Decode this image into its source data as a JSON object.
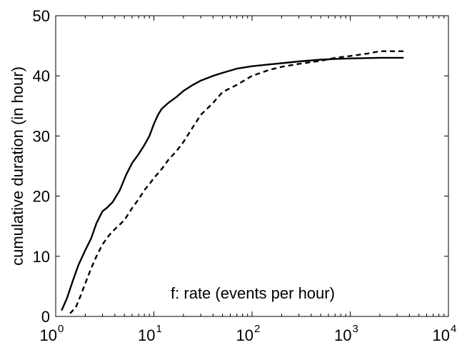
{
  "chart_data": {
    "type": "line",
    "title": "",
    "xlabel": "f: rate (events per hour)",
    "ylabel": "cumulative duration (in hour)",
    "xscale": "log",
    "xlim": [
      1,
      10000
    ],
    "ylim": [
      0,
      50
    ],
    "grid": false,
    "legend": "none",
    "xticks": [
      {
        "base": "10",
        "exp": "0"
      },
      {
        "base": "10",
        "exp": "1"
      },
      {
        "base": "10",
        "exp": "2"
      },
      {
        "base": "10",
        "exp": "3"
      },
      {
        "base": "10",
        "exp": "4"
      }
    ],
    "yticks": [
      "0",
      "10",
      "20",
      "30",
      "40",
      "50"
    ],
    "series": [
      {
        "style": "solid",
        "color": "#000000",
        "x": [
          1.15,
          1.3,
          1.5,
          1.7,
          2.0,
          2.3,
          2.6,
          3.0,
          3.3,
          3.8,
          4.5,
          5.2,
          6.0,
          7.0,
          8.0,
          9.0,
          10.0,
          11.0,
          12.0,
          14.0,
          17.0,
          20.0,
          25.0,
          30.0,
          40.0,
          50.0,
          70.0,
          100.0,
          150.0,
          200.0,
          300.0,
          500.0,
          700.0,
          1000.0,
          2000.0,
          3500.0
        ],
        "y": [
          1,
          3,
          6,
          8.5,
          11,
          13,
          15.5,
          17.5,
          18,
          19,
          21,
          23.5,
          25.5,
          27,
          28.5,
          30,
          32,
          33.5,
          34.5,
          35.5,
          36.5,
          37.5,
          38.5,
          39.2,
          40,
          40.5,
          41.2,
          41.6,
          41.9,
          42.1,
          42.4,
          42.7,
          42.8,
          42.9,
          43.0,
          43.0
        ]
      },
      {
        "style": "dashed",
        "color": "#000000",
        "x": [
          1.4,
          1.6,
          1.8,
          2.0,
          2.3,
          2.6,
          3.0,
          3.5,
          4.0,
          5.0,
          6.0,
          7.0,
          8.0,
          9.0,
          10.0,
          12.0,
          14.0,
          17.0,
          20.0,
          25.0,
          30.0,
          40.0,
          50.0,
          70.0,
          100.0,
          150.0,
          200.0,
          300.0,
          500.0,
          700.0,
          1000.0,
          1500.0,
          2000.0,
          3500.0
        ],
        "y": [
          0.5,
          1.5,
          3.5,
          5.5,
          8,
          10,
          12,
          13.5,
          14.5,
          16,
          18,
          19.5,
          21,
          22,
          23,
          24.5,
          26,
          27.5,
          29,
          31.5,
          33.5,
          35.5,
          37.3,
          38.5,
          40,
          41,
          41.5,
          42,
          42.5,
          43,
          43.3,
          43.7,
          44.1,
          44.1
        ]
      }
    ]
  }
}
